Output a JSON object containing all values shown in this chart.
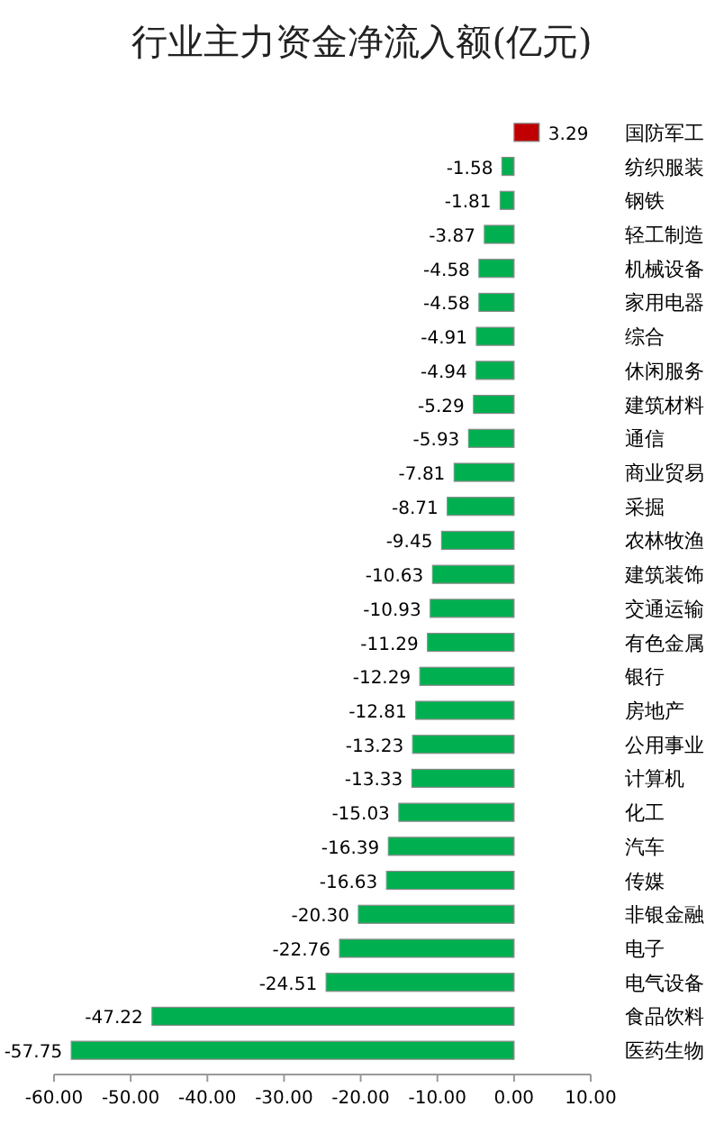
{
  "chart_data": {
    "type": "bar",
    "orientation": "horizontal",
    "title": "行业主力资金净流入额(亿元)",
    "categories": [
      "国防军工",
      "纺织服装",
      "钢铁",
      "轻工制造",
      "机械设备",
      "家用电器",
      "综合",
      "休闲服务",
      "建筑材料",
      "通信",
      "商业贸易",
      "采掘",
      "农林牧渔",
      "建筑装饰",
      "交通运输",
      "有色金属",
      "银行",
      "房地产",
      "公用事业",
      "计算机",
      "化工",
      "汽车",
      "传媒",
      "非银金融",
      "电子",
      "电气设备",
      "食品饮料",
      "医药生物"
    ],
    "values": [
      3.29,
      -1.58,
      -1.81,
      -3.87,
      -4.58,
      -4.58,
      -4.91,
      -4.94,
      -5.29,
      -5.93,
      -7.81,
      -8.71,
      -9.45,
      -10.63,
      -10.93,
      -11.29,
      -12.29,
      -12.81,
      -13.23,
      -13.33,
      -15.03,
      -16.39,
      -16.63,
      -20.3,
      -22.76,
      -24.51,
      -47.22,
      -57.75
    ],
    "value_labels": [
      "3.29",
      "-1.58",
      "-1.81",
      "-3.87",
      "-4.58",
      "-4.58",
      "-4.91",
      "-4.94",
      "-5.29",
      "-5.93",
      "-7.81",
      "-8.71",
      "-9.45",
      "-10.63",
      "-10.93",
      "-11.29",
      "-12.29",
      "-12.81",
      "-13.23",
      "-13.33",
      "-15.03",
      "-16.39",
      "-16.63",
      "-20.30",
      "-22.76",
      "-24.51",
      "-47.22",
      "-57.75"
    ],
    "colors": [
      "#c00000",
      "#00b050",
      "#00b050",
      "#00b050",
      "#00b050",
      "#00b050",
      "#00b050",
      "#00b050",
      "#00b050",
      "#00b050",
      "#00b050",
      "#00b050",
      "#00b050",
      "#00b050",
      "#00b050",
      "#00b050",
      "#00b050",
      "#00b050",
      "#00b050",
      "#00b050",
      "#00b050",
      "#00b050",
      "#00b050",
      "#00b050",
      "#00b050",
      "#00b050",
      "#00b050",
      "#00b050"
    ],
    "xlim": [
      -60,
      10
    ],
    "xticks": [
      {
        "value": -60,
        "label": "-60.00"
      },
      {
        "value": -50,
        "label": "-50.00"
      },
      {
        "value": -40,
        "label": "-40.00"
      },
      {
        "value": -30,
        "label": "-30.00"
      },
      {
        "value": -20,
        "label": "-20.00"
      },
      {
        "value": -10,
        "label": "-10.00"
      },
      {
        "value": 0,
        "label": "0.00"
      },
      {
        "value": 10,
        "label": "10.00"
      }
    ]
  }
}
